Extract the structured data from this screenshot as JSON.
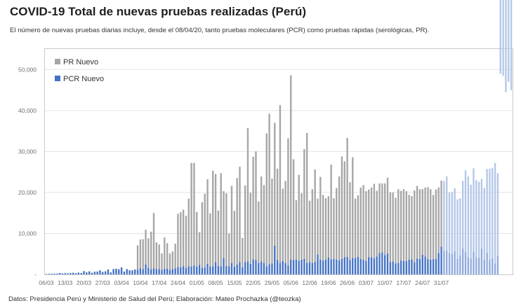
{
  "chart_data": {
    "type": "bar",
    "stacked": true,
    "title": "COVID-19 Total de nuevas pruebas realizadas (Perú)",
    "subtitle": "El número de nuevas pruebas diarias incluye, desde el 08/04/20, tanto pruebas moleculares (PCR) como pruebas rápidas (serológicas, PR).",
    "source": "Datos: Presidencia Perú y Ministerio de Salud del Perú; Elaboración: Mateo Prochazka (@teozka)",
    "xlabel": "",
    "ylabel": "",
    "ylim": [
      0,
      55000
    ],
    "yticks": [
      0,
      10000,
      20000,
      30000,
      40000,
      50000
    ],
    "ytick_labels": [
      "-",
      "10,000",
      "20,000",
      "30,000",
      "40,000",
      "50,000"
    ],
    "xtick_labels": [
      "06/03",
      "13/03",
      "20/03",
      "27/03",
      "03/04",
      "10/04",
      "17/04",
      "24/04",
      "01/05",
      "08/05",
      "15/05",
      "22/05",
      "29/05",
      "05/06",
      "12/06",
      "19/06",
      "26/06",
      "03/07",
      "10/07",
      "17/07",
      "24/07",
      "31/07"
    ],
    "xtick_every": 7,
    "grid": true,
    "legend_position": "top-left",
    "colors": {
      "pr": "#a6a6a6",
      "pcr": "#4472c4",
      "pr_recent": "#b4c7e7",
      "pcr_recent": "#8faadc"
    },
    "recent_from_index": 148,
    "series": [
      {
        "name": "PR Nuevo",
        "key": "pr",
        "values": [
          0,
          0,
          0,
          0,
          0,
          0,
          0,
          0,
          0,
          0,
          0,
          0,
          0,
          0,
          0,
          0,
          0,
          0,
          0,
          0,
          0,
          0,
          0,
          0,
          0,
          0,
          0,
          0,
          0,
          0,
          0,
          0,
          0,
          0,
          6000,
          7000,
          7300,
          8500,
          7200,
          9200,
          13500,
          6500,
          6000,
          4000,
          7600,
          6200,
          4000,
          4300,
          6000,
          13000,
          13500,
          13800,
          12700,
          16500,
          25300,
          25000,
          13300,
          8000,
          16000,
          18000,
          20600,
          13000,
          23300,
          21500,
          13500,
          22700,
          16300,
          17700,
          8000,
          18800,
          13600,
          21100,
          23300,
          7200,
          18700,
          32500,
          17300,
          25000,
          26500,
          15000,
          20700,
          19000,
          32400,
          36700,
          20700,
          30000,
          22300,
          38500,
          17600,
          20000,
          31000,
          45000,
          24600,
          14500,
          21000,
          16200,
          26800,
          31700,
          15000,
          18000,
          22500,
          13600,
          20200,
          16000,
          15000,
          15000,
          23100,
          14800,
          17500,
          20500,
          25000,
          23400,
          29000,
          19000,
          24600,
          14500,
          15000,
          17400,
          18200,
          17000,
          16500,
          17000,
          18200,
          16000,
          17000,
          16800,
          17500,
          18500,
          17000,
          16800,
          16000,
          18000,
          17000,
          17500,
          17000,
          15800,
          15400,
          17500,
          17700,
          17000,
          16000,
          16800,
          17500,
          17200,
          15700,
          16900,
          16000,
          16100,
          17000,
          18100,
          14800,
          15000,
          15300,
          14500,
          14000,
          16500,
          19800,
          19700,
          18000,
          20300,
          18800,
          18600,
          17000,
          17500,
          20500,
          22200,
          22000,
          24500,
          20200,
          18000,
          18500,
          22500,
          20000,
          22000
        ]
      },
      {
        "name": "PCR Nuevo",
        "key": "pcr",
        "values": [
          100,
          150,
          150,
          200,
          200,
          350,
          250,
          300,
          250,
          350,
          400,
          300,
          450,
          350,
          800,
          500,
          750,
          400,
          650,
          700,
          1000,
          600,
          750,
          1200,
          500,
          1300,
          1400,
          1250,
          1700,
          700,
          1300,
          1000,
          1000,
          1200,
          1100,
          1500,
          1300,
          2400,
          1600,
          1200,
          1500,
          1300,
          1300,
          1100,
          1400,
          1400,
          1100,
          1300,
          1500,
          1800,
          1700,
          2000,
          1600,
          2000,
          1900,
          2200,
          1900,
          2300,
          1600,
          1700,
          2600,
          1900,
          2000,
          3000,
          2100,
          2000,
          4000,
          2100,
          2000,
          2800,
          1900,
          2400,
          3000,
          1700,
          3000,
          3200,
          2600,
          3700,
          3500,
          2800,
          3200,
          2800,
          2000,
          2500,
          2700,
          7000,
          3500,
          2800,
          3300,
          2800,
          2200,
          3600,
          3500,
          3600,
          3300,
          3600,
          3800,
          2800,
          3000,
          2800,
          3100,
          4900,
          3600,
          3400,
          3600,
          4100,
          3700,
          3800,
          3600,
          3400,
          3800,
          4200,
          4300,
          3500,
          4000,
          4000,
          4300,
          3800,
          3600,
          3300,
          4200,
          4200,
          3900,
          4400,
          5200,
          5400,
          4700,
          5100,
          3000,
          3200,
          2700,
          2800,
          3400,
          3300,
          3300,
          3600,
          3700,
          3000,
          3900,
          3800,
          4800,
          4400,
          3800,
          3600,
          3700,
          3800,
          5200,
          6800,
          5800,
          5800,
          5200,
          5000,
          5700,
          3800,
          4600,
          6300,
          5600,
          4200,
          3900,
          5600,
          4200,
          4000,
          6300,
          3600,
          5200,
          3600,
          4000,
          2700,
          4500
        ]
      }
    ]
  },
  "legend": {
    "items": [
      {
        "label": "PR Nuevo",
        "color": "#a6a6a6"
      },
      {
        "label": "PCR Nuevo",
        "color": "#4472c4"
      }
    ]
  }
}
